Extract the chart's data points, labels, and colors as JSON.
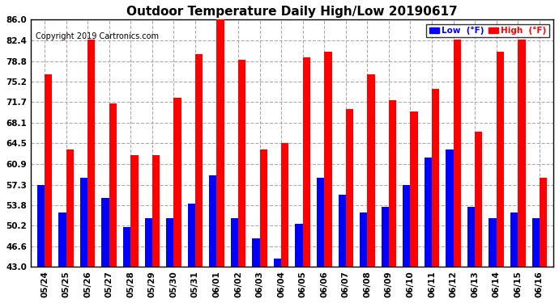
{
  "dates": [
    "05/24",
    "05/25",
    "05/26",
    "05/27",
    "05/28",
    "05/29",
    "05/30",
    "05/31",
    "06/01",
    "06/02",
    "06/03",
    "06/04",
    "06/05",
    "06/06",
    "06/07",
    "06/08",
    "06/09",
    "06/10",
    "06/11",
    "06/12",
    "06/13",
    "06/14",
    "06/15",
    "06/16"
  ],
  "lows": [
    57.3,
    52.5,
    58.5,
    55.0,
    50.0,
    51.5,
    51.5,
    54.0,
    59.0,
    51.5,
    48.0,
    44.5,
    50.5,
    58.5,
    55.5,
    52.5,
    53.5,
    57.3,
    62.0,
    63.5,
    53.5,
    51.5,
    52.5,
    51.5
  ],
  "highs": [
    76.5,
    63.5,
    82.5,
    71.5,
    62.5,
    62.5,
    72.5,
    80.0,
    86.5,
    79.0,
    63.5,
    64.5,
    79.5,
    80.5,
    70.5,
    76.5,
    72.0,
    70.0,
    74.0,
    82.5,
    66.5,
    80.5,
    82.5,
    58.5
  ],
  "title": "Outdoor Temperature Daily High/Low 20190617",
  "copyright": "Copyright 2019 Cartronics.com",
  "legend_low": "Low  (°F)",
  "legend_high": "High  (°F)",
  "low_color": "#0000ff",
  "high_color": "#ff0000",
  "bg_color": "#ffffff",
  "grid_color": "#aaaaaa",
  "yticks": [
    43.0,
    46.6,
    50.2,
    53.8,
    57.3,
    60.9,
    64.5,
    68.1,
    71.7,
    75.2,
    78.8,
    82.4,
    86.0
  ],
  "ymin": 43.0,
  "ymax": 86.0,
  "bar_width": 0.35,
  "title_fontsize": 11,
  "tick_fontsize": 7.5
}
